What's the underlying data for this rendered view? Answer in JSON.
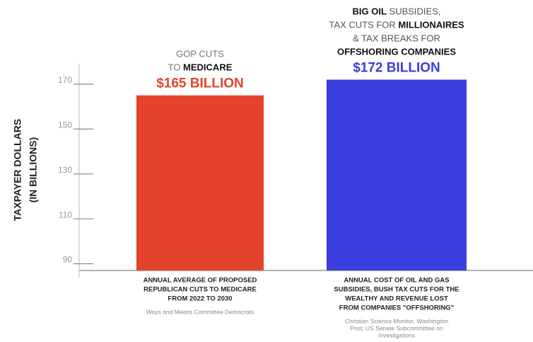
{
  "chart_data": {
    "type": "bar",
    "ylabel": [
      "TAXPAYER DOLLARS",
      "(IN BILLIONS)"
    ],
    "headlines": [
      [
        [
          {
            "text": "GOP CUTS",
            "bold": false
          }
        ],
        [
          {
            "text": "TO ",
            "bold": false
          },
          {
            "text": "MEDICARE",
            "bold": true
          }
        ]
      ],
      [
        [
          {
            "text": "BIG OIL",
            "bold": true
          },
          {
            "text": " SUBSIDIES,",
            "bold": false
          }
        ],
        [
          {
            "text": "TAX CUTS FOR ",
            "bold": false
          },
          {
            "text": "MILLIONAIRES",
            "bold": true
          }
        ],
        [
          {
            "text": "& TAX BREAKS FOR",
            "bold": false
          }
        ],
        [
          {
            "text": "OFFSHORING COMPANIES",
            "bold": true
          }
        ]
      ]
    ],
    "categories": [
      [
        "ANNUAL AVERAGE OF PROPOSED",
        "REPUBLICAN CUTS TO MEDICARE",
        "FROM 2022 TO 2030"
      ],
      [
        "ANNUAL COST OF OIL AND GAS",
        "SUBSIDIES, BUSH TAX CUTS FOR THE",
        "WEALTHY AND REVENUE LOST",
        "FROM COMPANIES \"OFFSHORING\""
      ]
    ],
    "sources": [
      [
        "Ways and Means Committee Democrats"
      ],
      [
        "Christian Science Monitor; Washington",
        "Post; US Senate Subcommittee on",
        "Investigations"
      ]
    ],
    "values": [
      165,
      172
    ],
    "value_labels": [
      "$165 BILLION",
      "$172 BILLION"
    ],
    "colors": [
      "#e4432c",
      "#3a3edc"
    ],
    "ylim": [
      87,
      175
    ],
    "yticks": [
      90,
      110,
      130,
      150,
      170
    ]
  }
}
